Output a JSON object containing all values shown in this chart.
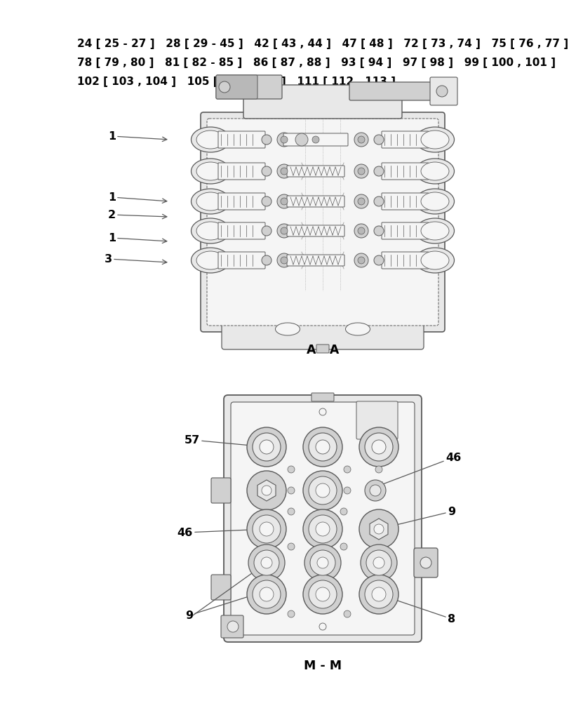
{
  "background_color": "#ffffff",
  "text_color": "#000000",
  "line_color": "#5a5a5a",
  "fill_light": "#f5f5f5",
  "fill_mid": "#e8e8e8",
  "fill_dark": "#d0d0d0",
  "fill_darker": "#b8b8b8",
  "header_lines": [
    "24 [ 25 - 27 ]   28 [ 29 - 45 ]   42 [ 43 , 44 ]   47 [ 48 ]   72 [ 73 , 74 ]   75 [ 76 , 77 ]",
    "78 [ 79 , 80 ]   81 [ 82 - 85 ]   86 [ 87 , 88 ]   93 [ 94 ]   97 [ 98 ]   99 [ 100 , 101 ]",
    "102 [ 103 , 104 ]   105 [ 106 , 107 ]   111 [ 112 , 113 ]"
  ],
  "diagram1_label": "A - A",
  "diagram2_label": "M - M",
  "font_size_header": 11.0,
  "font_size_annot": 11.5,
  "font_size_label": 12.5,
  "font_family": "DejaVu Sans"
}
